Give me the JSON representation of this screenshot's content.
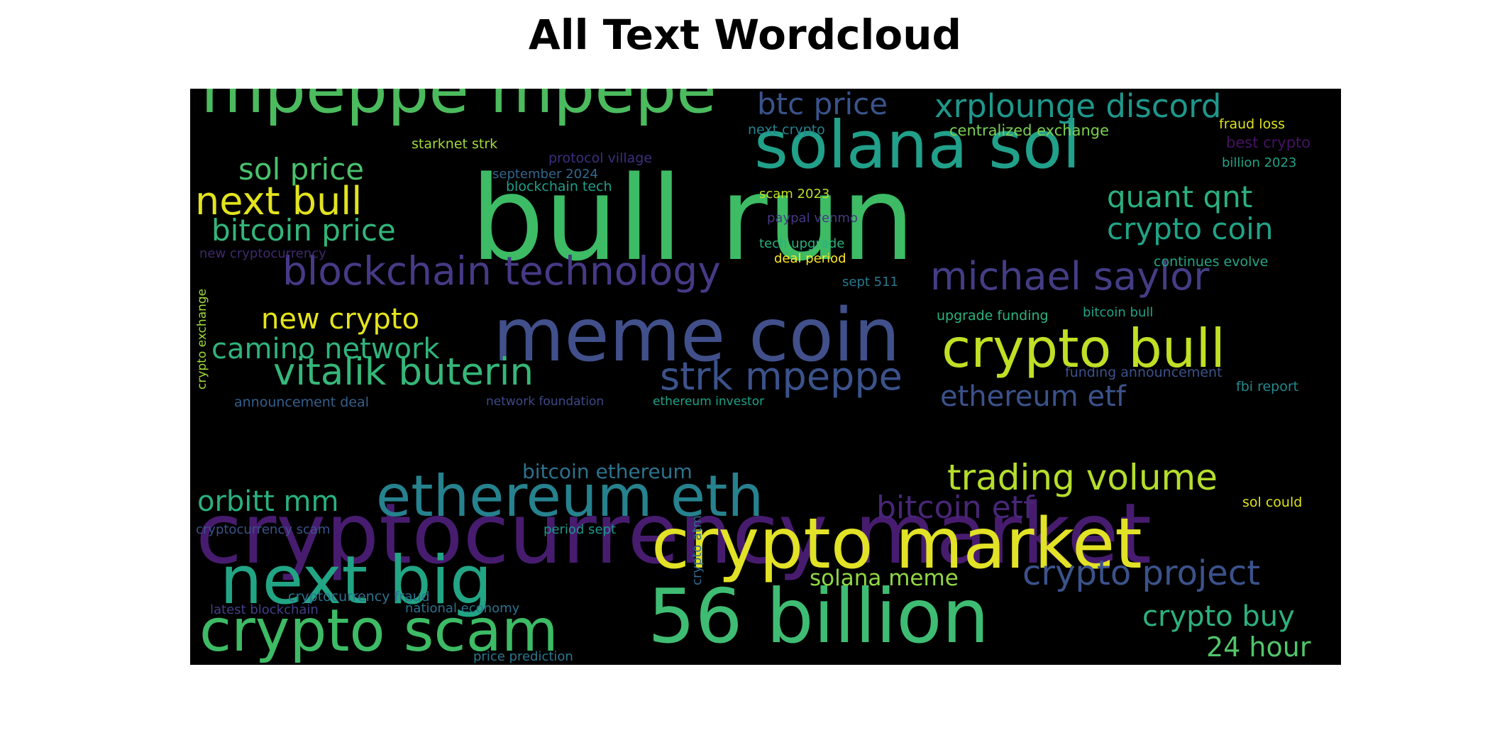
{
  "title": "All Text Wordcloud",
  "words": [
    {
      "text": "cryptocurrency market",
      "color": "#471c6f"
    },
    {
      "text": "bull run",
      "color": "#3dbb65"
    },
    {
      "text": "56 billion",
      "color": "#3fbc73"
    },
    {
      "text": "meme coin",
      "color": "#41508a"
    },
    {
      "text": "crypto market",
      "color": "#e2e226"
    },
    {
      "text": "solana sol",
      "color": "#21a08a"
    },
    {
      "text": "mpeppe mpepe",
      "color": "#4bbb5e"
    },
    {
      "text": "next big",
      "color": "#22a584"
    },
    {
      "text": "crypto scam",
      "color": "#3dbb65"
    },
    {
      "text": "ethereum eth",
      "color": "#26828e"
    },
    {
      "text": "crypto bull",
      "color": "#c0df25"
    },
    {
      "text": "blockchain technology",
      "color": "#463a86"
    },
    {
      "text": "michael saylor",
      "color": "#433d85"
    },
    {
      "text": "strk mpeppe",
      "color": "#3b528b"
    },
    {
      "text": "vitalik buterin",
      "color": "#35b779"
    },
    {
      "text": "trading volume",
      "color": "#b5de2b"
    },
    {
      "text": "crypto project",
      "color": "#3b528b"
    },
    {
      "text": "xrplounge discord",
      "color": "#1f978b"
    },
    {
      "text": "next bull",
      "color": "#e2e31d"
    },
    {
      "text": "crypto coin",
      "color": "#20a386"
    },
    {
      "text": "quant qnt",
      "color": "#2ab07f"
    },
    {
      "text": "btc price",
      "color": "#3a538b"
    },
    {
      "text": "bitcoin price",
      "color": "#32b67a"
    },
    {
      "text": "orbitt mm",
      "color": "#2ab07f"
    },
    {
      "text": "bitcoin etf",
      "color": "#482677"
    },
    {
      "text": "ethereum etf",
      "color": "#3b528b"
    },
    {
      "text": "new crypto",
      "color": "#e5e419"
    },
    {
      "text": "camino network",
      "color": "#2fb47c"
    },
    {
      "text": "sol price",
      "color": "#4ac16d"
    },
    {
      "text": "crypto buy",
      "color": "#2db27d"
    },
    {
      "text": "24 hour",
      "color": "#52c569"
    },
    {
      "text": "bitcoin ethereum",
      "color": "#2c728e"
    },
    {
      "text": "solana meme",
      "color": "#8fd744"
    },
    {
      "text": "next crypto",
      "color": "#26828e"
    },
    {
      "text": "centralized exchange",
      "color": "#7ad151"
    },
    {
      "text": "fraud loss",
      "color": "#dde318"
    },
    {
      "text": "best crypto",
      "color": "#471164"
    },
    {
      "text": "billion 2023",
      "color": "#20a386"
    },
    {
      "text": "starknet strk",
      "color": "#a2da37"
    },
    {
      "text": "protocol village",
      "color": "#3b2f80"
    },
    {
      "text": "september 2024",
      "color": "#31688e"
    },
    {
      "text": "blockchain tech",
      "color": "#1f9e89"
    },
    {
      "text": "scam 2023",
      "color": "#bddf26"
    },
    {
      "text": "paypal venmo",
      "color": "#443a83"
    },
    {
      "text": "tech upgrade",
      "color": "#2ab07f"
    },
    {
      "text": "deal period",
      "color": "#fde725"
    },
    {
      "text": "new cryptocurrency",
      "color": "#3e2a6c"
    },
    {
      "text": "continues evolve",
      "color": "#21a685"
    },
    {
      "text": "sept 511",
      "color": "#2a788e"
    },
    {
      "text": "upgrade funding",
      "color": "#2db27d"
    },
    {
      "text": "bitcoin bull",
      "color": "#20a386"
    },
    {
      "text": "funding announcement",
      "color": "#3b528b"
    },
    {
      "text": "fbi report",
      "color": "#23898e"
    },
    {
      "text": "crypto exchange",
      "color": "#9fda3a"
    },
    {
      "text": "announcement deal",
      "color": "#355f8d"
    },
    {
      "text": "network foundation",
      "color": "#3e4989"
    },
    {
      "text": "ethereum investor",
      "color": "#1fa287"
    },
    {
      "text": "sol could",
      "color": "#dde318"
    },
    {
      "text": "cryptocurrency scam",
      "color": "#3b528b"
    },
    {
      "text": "period sept",
      "color": "#1f968b"
    },
    {
      "text": "crypto atm",
      "color": "#31688e"
    },
    {
      "text": "cryptocurrency fraud",
      "color": "#2c728e"
    },
    {
      "text": "latest blockchain",
      "color": "#433e85"
    },
    {
      "text": "national economy",
      "color": "#2c728e"
    },
    {
      "text": "price prediction",
      "color": "#2a788e"
    }
  ]
}
